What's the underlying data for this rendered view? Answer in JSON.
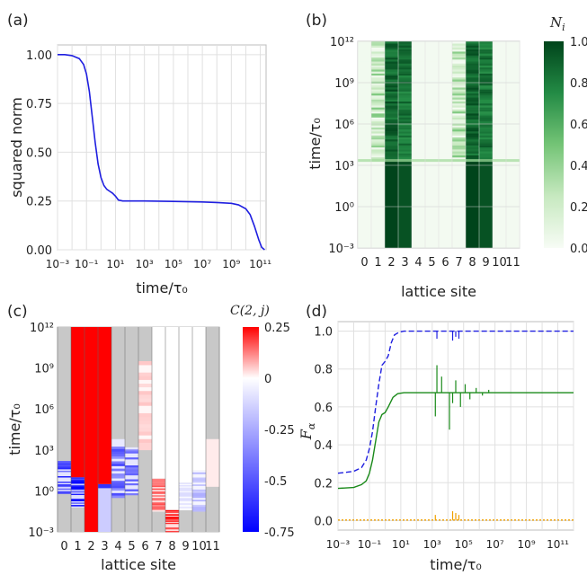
{
  "chart_data": [
    {
      "panel": "(a)",
      "type": "line",
      "xlabel": "time/τ₀",
      "ylabel": "squared norm",
      "x_scale": "log",
      "xlim": [
        -3,
        11.4
      ],
      "ylim": [
        0,
        1.05
      ],
      "x_ticks": [
        {
          "exp": -3,
          "label": "10⁻³"
        },
        {
          "exp": -1,
          "label": "10⁻¹"
        },
        {
          "exp": 1,
          "label": "10¹"
        },
        {
          "exp": 3,
          "label": "10³"
        },
        {
          "exp": 5,
          "label": "10⁵"
        },
        {
          "exp": 7,
          "label": "10⁷"
        },
        {
          "exp": 9,
          "label": "10⁹"
        },
        {
          "exp": 11,
          "label": "10¹¹"
        }
      ],
      "y_ticks": [
        {
          "value": 0.0,
          "label": "0.00"
        },
        {
          "value": 0.25,
          "label": "0.25"
        },
        {
          "value": 0.5,
          "label": "0.50"
        },
        {
          "value": 0.75,
          "label": "0.75"
        },
        {
          "value": 1.0,
          "label": "1.00"
        }
      ],
      "series": [
        {
          "name": "squared norm",
          "color": "#1f1fe0",
          "x_log10": [
            -3,
            -2.5,
            -2,
            -1.5,
            -1.2,
            -1,
            -0.8,
            -0.6,
            -0.4,
            -0.2,
            0,
            0.2,
            0.4,
            0.6,
            0.8,
            1,
            1.2,
            1.5,
            2,
            3,
            5,
            7,
            8,
            9,
            9.5,
            10,
            10.3,
            10.6,
            10.9,
            11.1,
            11.3
          ],
          "y": [
            1.0,
            1.0,
            0.995,
            0.98,
            0.95,
            0.9,
            0.81,
            0.68,
            0.55,
            0.44,
            0.37,
            0.33,
            0.31,
            0.3,
            0.29,
            0.275,
            0.255,
            0.25,
            0.25,
            0.25,
            0.248,
            0.245,
            0.242,
            0.238,
            0.23,
            0.21,
            0.18,
            0.12,
            0.05,
            0.012,
            0.0
          ]
        }
      ]
    },
    {
      "panel": "(b)",
      "type": "heatmap",
      "xlabel": "lattice site",
      "ylabel": "time/τ₀",
      "colorbar_label": "N",
      "colorbar_label_sub": "i",
      "colormap": "Greens",
      "vmin": 0.0,
      "vmax": 1.0,
      "colorbar_ticks": [
        {
          "value": 0.0,
          "label": "0.0"
        },
        {
          "value": 0.2,
          "label": "0.2"
        },
        {
          "value": 0.4,
          "label": "0.4"
        },
        {
          "value": 0.6,
          "label": "0.6"
        },
        {
          "value": 0.8,
          "label": "0.8"
        },
        {
          "value": 1.0,
          "label": "1.0"
        }
      ],
      "sites": [
        "0",
        "1",
        "2",
        "3",
        "4",
        "5",
        "6",
        "7",
        "8",
        "9",
        "10",
        "11"
      ],
      "y_scale": "log",
      "ylim": [
        -3,
        12
      ],
      "y_ticks": [
        {
          "exp": -3,
          "label": "10⁻³"
        },
        {
          "exp": 0,
          "label": "10⁰"
        },
        {
          "exp": 3,
          "label": "10³"
        },
        {
          "exp": 6,
          "label": "10⁶"
        },
        {
          "exp": 9,
          "label": "10⁹"
        },
        {
          "exp": 12,
          "label": "10¹²"
        }
      ],
      "early_occupation": [
        0.02,
        0.02,
        1.0,
        0.95,
        0.02,
        0.02,
        0.02,
        0.02,
        1.0,
        0.95,
        0.02,
        0.02
      ],
      "late_occupation": [
        0.03,
        0.3,
        0.9,
        0.85,
        0.02,
        0.02,
        0.02,
        0.3,
        0.9,
        0.85,
        0.02,
        0.02
      ],
      "transition_exp": 3.3,
      "flicker_start_exp": 3.3
    },
    {
      "panel": "(c)",
      "type": "heatmap",
      "xlabel": "lattice site",
      "ylabel": "time/τ₀",
      "colorbar_label": "C(2, j)",
      "colormap": "bwr",
      "vmin": -0.75,
      "vmax": 0.25,
      "colorbar_ticks": [
        {
          "value": 0.25,
          "label": "0.25"
        },
        {
          "value": 0.0,
          "label": "0"
        },
        {
          "value": -0.25,
          "label": "-0.25"
        },
        {
          "value": -0.5,
          "label": "-0.5"
        },
        {
          "value": -0.75,
          "label": "-0.75"
        }
      ],
      "sites": [
        "0",
        "1",
        "2",
        "3",
        "4",
        "5",
        "6",
        "7",
        "8",
        "9",
        "10",
        "11"
      ],
      "y_scale": "log",
      "ylim": [
        -3,
        12
      ],
      "y_ticks": [
        {
          "exp": -3,
          "label": "10⁻³"
        },
        {
          "exp": 0,
          "label": "10⁰"
        },
        {
          "exp": 3,
          "label": "10³"
        },
        {
          "exp": 6,
          "label": "10⁶"
        },
        {
          "exp": 9,
          "label": "10⁹"
        },
        {
          "exp": 12,
          "label": "10¹²"
        }
      ],
      "masked_color": "#c8c8c8",
      "columns": [
        {
          "site": 0,
          "blocks": [
            {
              "from": -3,
              "to": -0.2,
              "value": null
            },
            {
              "from": -0.2,
              "to": 2.2,
              "value": -0.55,
              "striped": true
            },
            {
              "from": 2.2,
              "to": 12,
              "value": null
            }
          ]
        },
        {
          "site": 1,
          "blocks": [
            {
              "from": -3,
              "to": -1.2,
              "value": null
            },
            {
              "from": -1.2,
              "to": 1.0,
              "value": -0.65,
              "striped": true
            },
            {
              "from": 1.0,
              "to": 12,
              "value": 0.25
            }
          ]
        },
        {
          "site": 2,
          "blocks": [
            {
              "from": -3,
              "to": 12,
              "value": 0.25
            }
          ]
        },
        {
          "site": 3,
          "blocks": [
            {
              "from": -3,
              "to": 0.2,
              "value": -0.15
            },
            {
              "from": 0.2,
              "to": 0.5,
              "value": -0.6
            },
            {
              "from": 0.5,
              "to": 12,
              "value": 0.25
            }
          ]
        },
        {
          "site": 4,
          "blocks": [
            {
              "from": -3,
              "to": -0.5,
              "value": null
            },
            {
              "from": -0.5,
              "to": 3.8,
              "value": -0.45,
              "striped": true
            },
            {
              "from": 3.8,
              "to": 12,
              "value": null
            }
          ]
        },
        {
          "site": 5,
          "blocks": [
            {
              "from": -3,
              "to": -0.3,
              "value": null
            },
            {
              "from": -0.3,
              "to": 3.2,
              "value": -0.5,
              "striped": true
            },
            {
              "from": 3.2,
              "to": 12,
              "value": null
            }
          ]
        },
        {
          "site": 6,
          "blocks": [
            {
              "from": -3,
              "to": 3.0,
              "value": null
            },
            {
              "from": 3.0,
              "to": 9.5,
              "value": 0.05,
              "striped": true
            },
            {
              "from": 9.5,
              "to": 12,
              "value": null
            }
          ]
        },
        {
          "site": 7,
          "blocks": [
            {
              "from": -3,
              "to": -1.5,
              "value": null
            },
            {
              "from": -1.5,
              "to": 0.9,
              "value": 0.15,
              "striped": true
            },
            {
              "from": 0.9,
              "to": 12,
              "value": 0.0
            }
          ]
        },
        {
          "site": 8,
          "blocks": [
            {
              "from": -3,
              "to": -1.4,
              "value": 0.22,
              "striped": true
            },
            {
              "from": -1.4,
              "to": 12,
              "value": 0.0
            }
          ]
        },
        {
          "site": 9,
          "blocks": [
            {
              "from": -3,
              "to": -1.4,
              "value": null
            },
            {
              "from": -1.4,
              "to": 0.6,
              "value": -0.1,
              "striped": true
            },
            {
              "from": 0.6,
              "to": 12,
              "value": 0.0
            }
          ]
        },
        {
          "site": 10,
          "blocks": [
            {
              "from": -3,
              "to": -1.5,
              "value": null
            },
            {
              "from": -1.5,
              "to": 1.5,
              "value": -0.2,
              "striped": true
            },
            {
              "from": 1.5,
              "to": 12,
              "value": 0.0
            }
          ]
        },
        {
          "site": 11,
          "blocks": [
            {
              "from": -3,
              "to": 0.3,
              "value": null
            },
            {
              "from": 0.3,
              "to": 3.8,
              "value": 0.02
            },
            {
              "from": 3.8,
              "to": 12,
              "value": null
            }
          ]
        }
      ]
    },
    {
      "panel": "(d)",
      "type": "line",
      "xlabel": "time/τ₀",
      "ylabel": "F",
      "ylabel_sub": "α",
      "x_scale": "log",
      "xlim": [
        -3,
        12
      ],
      "ylim": [
        -0.05,
        1.05
      ],
      "x_ticks": [
        {
          "exp": -3,
          "label": "10⁻³"
        },
        {
          "exp": -1,
          "label": "10⁻¹"
        },
        {
          "exp": 1,
          "label": "10¹"
        },
        {
          "exp": 3,
          "label": "10³"
        },
        {
          "exp": 5,
          "label": "10⁵"
        },
        {
          "exp": 7,
          "label": "10⁷"
        },
        {
          "exp": 9,
          "label": "10⁹"
        },
        {
          "exp": 11,
          "label": "10¹¹"
        }
      ],
      "y_ticks": [
        {
          "value": 0.0,
          "label": "0.0"
        },
        {
          "value": 0.2,
          "label": "0.2"
        },
        {
          "value": 0.4,
          "label": "0.4"
        },
        {
          "value": 0.6,
          "label": "0.6"
        },
        {
          "value": 0.8,
          "label": "0.8"
        },
        {
          "value": 1.0,
          "label": "1.0"
        }
      ],
      "series": [
        {
          "name": "blue dashed",
          "color": "#1f1fe0",
          "dash": "6,3",
          "x_log10": [
            -3,
            -2,
            -1.5,
            -1.2,
            -1,
            -0.8,
            -0.6,
            -0.4,
            -0.2,
            0,
            0.2,
            0.4,
            0.6,
            0.9,
            1.2,
            2,
            4,
            8,
            12
          ],
          "y": [
            0.25,
            0.26,
            0.28,
            0.32,
            0.38,
            0.47,
            0.6,
            0.72,
            0.82,
            0.84,
            0.87,
            0.94,
            0.98,
            0.995,
            1.0,
            1.0,
            1.0,
            1.0,
            1.0
          ],
          "spikes": [
            {
              "x_log10": 3.3,
              "y": 0.96
            },
            {
              "x_log10": 4.3,
              "y": 0.95
            },
            {
              "x_log10": 4.5,
              "y": 0.97
            },
            {
              "x_log10": 4.7,
              "y": 0.96
            }
          ]
        },
        {
          "name": "green solid",
          "color": "#1a8a1a",
          "dash": "",
          "x_log10": [
            -3,
            -2,
            -1.5,
            -1.2,
            -1,
            -0.8,
            -0.6,
            -0.4,
            -0.2,
            0,
            0.2,
            0.5,
            0.8,
            1.2,
            2,
            4,
            8,
            12
          ],
          "y": [
            0.17,
            0.175,
            0.19,
            0.21,
            0.25,
            0.32,
            0.42,
            0.52,
            0.56,
            0.57,
            0.6,
            0.65,
            0.67,
            0.675,
            0.675,
            0.675,
            0.675,
            0.675
          ],
          "spikes": [
            {
              "x_log10": 3.2,
              "y": 0.55
            },
            {
              "x_log10": 3.3,
              "y": 0.82
            },
            {
              "x_log10": 3.6,
              "y": 0.76
            },
            {
              "x_log10": 4.1,
              "y": 0.48
            },
            {
              "x_log10": 4.3,
              "y": 0.62
            },
            {
              "x_log10": 4.5,
              "y": 0.74
            },
            {
              "x_log10": 4.8,
              "y": 0.6
            },
            {
              "x_log10": 5.1,
              "y": 0.72
            },
            {
              "x_log10": 5.4,
              "y": 0.64
            },
            {
              "x_log10": 5.8,
              "y": 0.7
            },
            {
              "x_log10": 6.2,
              "y": 0.66
            },
            {
              "x_log10": 6.6,
              "y": 0.69
            }
          ]
        },
        {
          "name": "orange dotted",
          "color": "#f0a000",
          "dash": "2,2",
          "x_log10": [
            -3,
            12
          ],
          "y": [
            0.003,
            0.003
          ],
          "spikes": [
            {
              "x_log10": 3.2,
              "y": 0.03
            },
            {
              "x_log10": 4.3,
              "y": 0.05
            },
            {
              "x_log10": 4.5,
              "y": 0.04
            },
            {
              "x_log10": 4.7,
              "y": 0.03
            }
          ]
        }
      ]
    }
  ]
}
